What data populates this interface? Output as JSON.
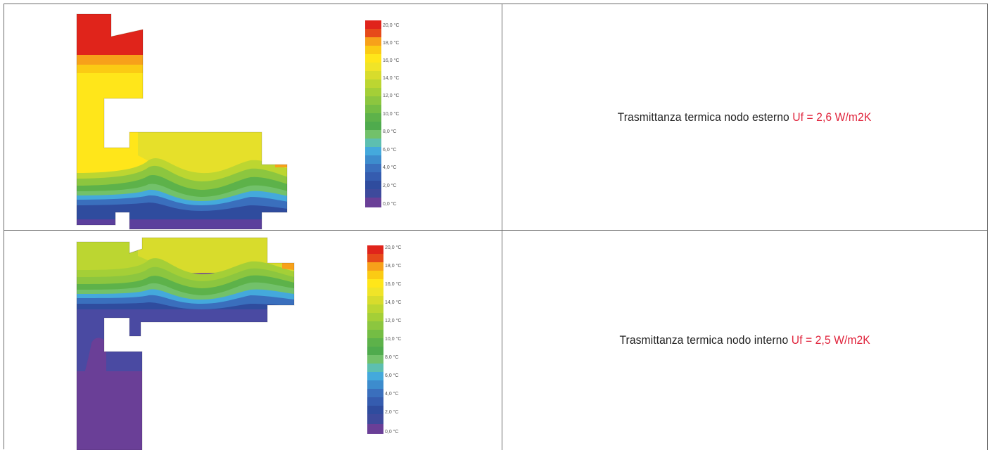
{
  "colors": {
    "c00": "#6a3f97",
    "c02": "#2f4c9e",
    "c04": "#3a6fbd",
    "c06": "#44a9dc",
    "c08": "#72c16a",
    "c10": "#5db24a",
    "c12": "#8cc63f",
    "c14": "#bcd631",
    "c16": "#ffe61a",
    "c18": "#f7a11a",
    "c20": "#e0241b",
    "accent": "#e0243c"
  },
  "legend_labels": [
    "20,0 °C",
    "18,0 °C",
    "16,0 °C",
    "14,0 °C",
    "12,0 °C",
    "10,0 °C",
    "8,0 °C",
    "6,0 °C",
    "4,0 °C",
    "2,0 °C",
    "0,0 °C"
  ],
  "rows": [
    {
      "caption_prefix": "Trasmittanza termica nodo esterno ",
      "caption_value": "Uf = 2,6 W/m2K"
    },
    {
      "caption_prefix": "Trasmittanza termica nodo interno ",
      "caption_value": "Uf = 2,5 W/m2K"
    }
  ]
}
